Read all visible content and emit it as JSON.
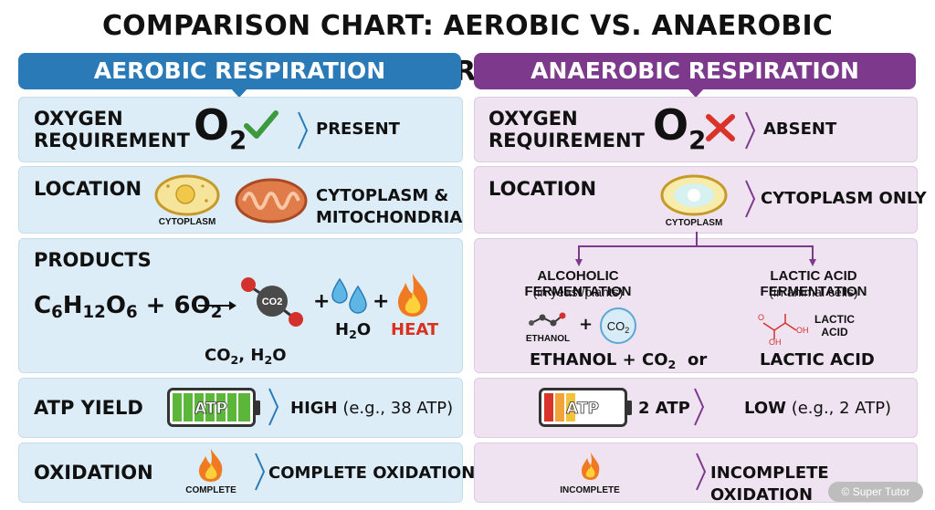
{
  "title": "COMPARISON CHART: AEROBIC VS. ANAEROBIC RESPIRATION",
  "colors": {
    "aerobic_header": "#2a7ab8",
    "anaerobic_header": "#7d3a8c",
    "aerobic_panel": "#dcedf7",
    "anaerobic_panel": "#efe3f1",
    "heat_text": "#d9321f",
    "check": "#3c9a3c",
    "cross": "#d9342a"
  },
  "aerobic": {
    "header": "AEROBIC RESPIRATION",
    "oxygen": {
      "label_line1": "OXYGEN",
      "label_line2": "REQUIREMENT",
      "symbol": "O",
      "symbol_sub": "2",
      "mark_icon": "check-icon",
      "value": "PRESENT"
    },
    "location": {
      "label": "LOCATION",
      "icon_caption": "CYTOPLASM",
      "value_line1": "CYTOPLASM &",
      "value_line2": "MITOCHONDRIA"
    },
    "products": {
      "label": "PRODUCTS",
      "formula": {
        "c": "C",
        "c_n": "6",
        "h": "H",
        "h_n": "12",
        "o": "O",
        "o_n": "6",
        "plus_o2": " + 6O",
        "o2_n": "2"
      },
      "co2_label": "CO2",
      "water_label": "H",
      "water_label_sub": "2",
      "water_label_end": "O",
      "heat_label": "HEAT",
      "summary_a": "CO",
      "summary_a_sub": "2",
      "summary_b": ", H",
      "summary_b_sub": "2",
      "summary_c": "O"
    },
    "atp": {
      "label": "ATP YIELD",
      "battery_text": "ATP",
      "value_bold": "HIGH",
      "value_note": " (e.g., 38 ATP)"
    },
    "oxidation": {
      "label": "OXIDATION",
      "icon_caption": "COMPLETE",
      "value": "COMPLETE OXIDATION"
    }
  },
  "anaerobic": {
    "header": "ANAEROBIC RESPIRATION",
    "oxygen": {
      "label_line1": "OXYGEN",
      "label_line2": "REQUIREMENT",
      "symbol": "O",
      "symbol_sub": "2",
      "mark_icon": "cross-icon",
      "value": "ABSENT"
    },
    "location": {
      "label": "LOCATION",
      "icon_caption": "CYTOPLASM",
      "value": "CYTOPLASM ONLY"
    },
    "products": {
      "alcoholic": {
        "title": "ALCOHOLIC FERMENTATION",
        "subtitle": "(in yeast/plants)",
        "ethanol_caption": "ETHANOL",
        "co2_label": "CO",
        "co2_label_sub": "2",
        "result_a": "ETHANOL + CO",
        "result_a_sub": "2"
      },
      "or": "or",
      "lactic": {
        "title": "LACTIC ACID FERMENTATION",
        "subtitle": "(in animal cells)",
        "molecule_caption_line1": "LACTIC",
        "molecule_caption_line2": "ACID",
        "result": "LACTIC ACID"
      }
    },
    "atp": {
      "battery_text": "ATP",
      "value_a": "2 ATP",
      "value_bold": "LOW",
      "value_note": " (e.g., 2 ATP)"
    },
    "oxidation": {
      "icon_caption": "INCOMPLETE",
      "value": "INCOMPLETE OXIDATION"
    }
  },
  "watermark": "© Super Tutor"
}
